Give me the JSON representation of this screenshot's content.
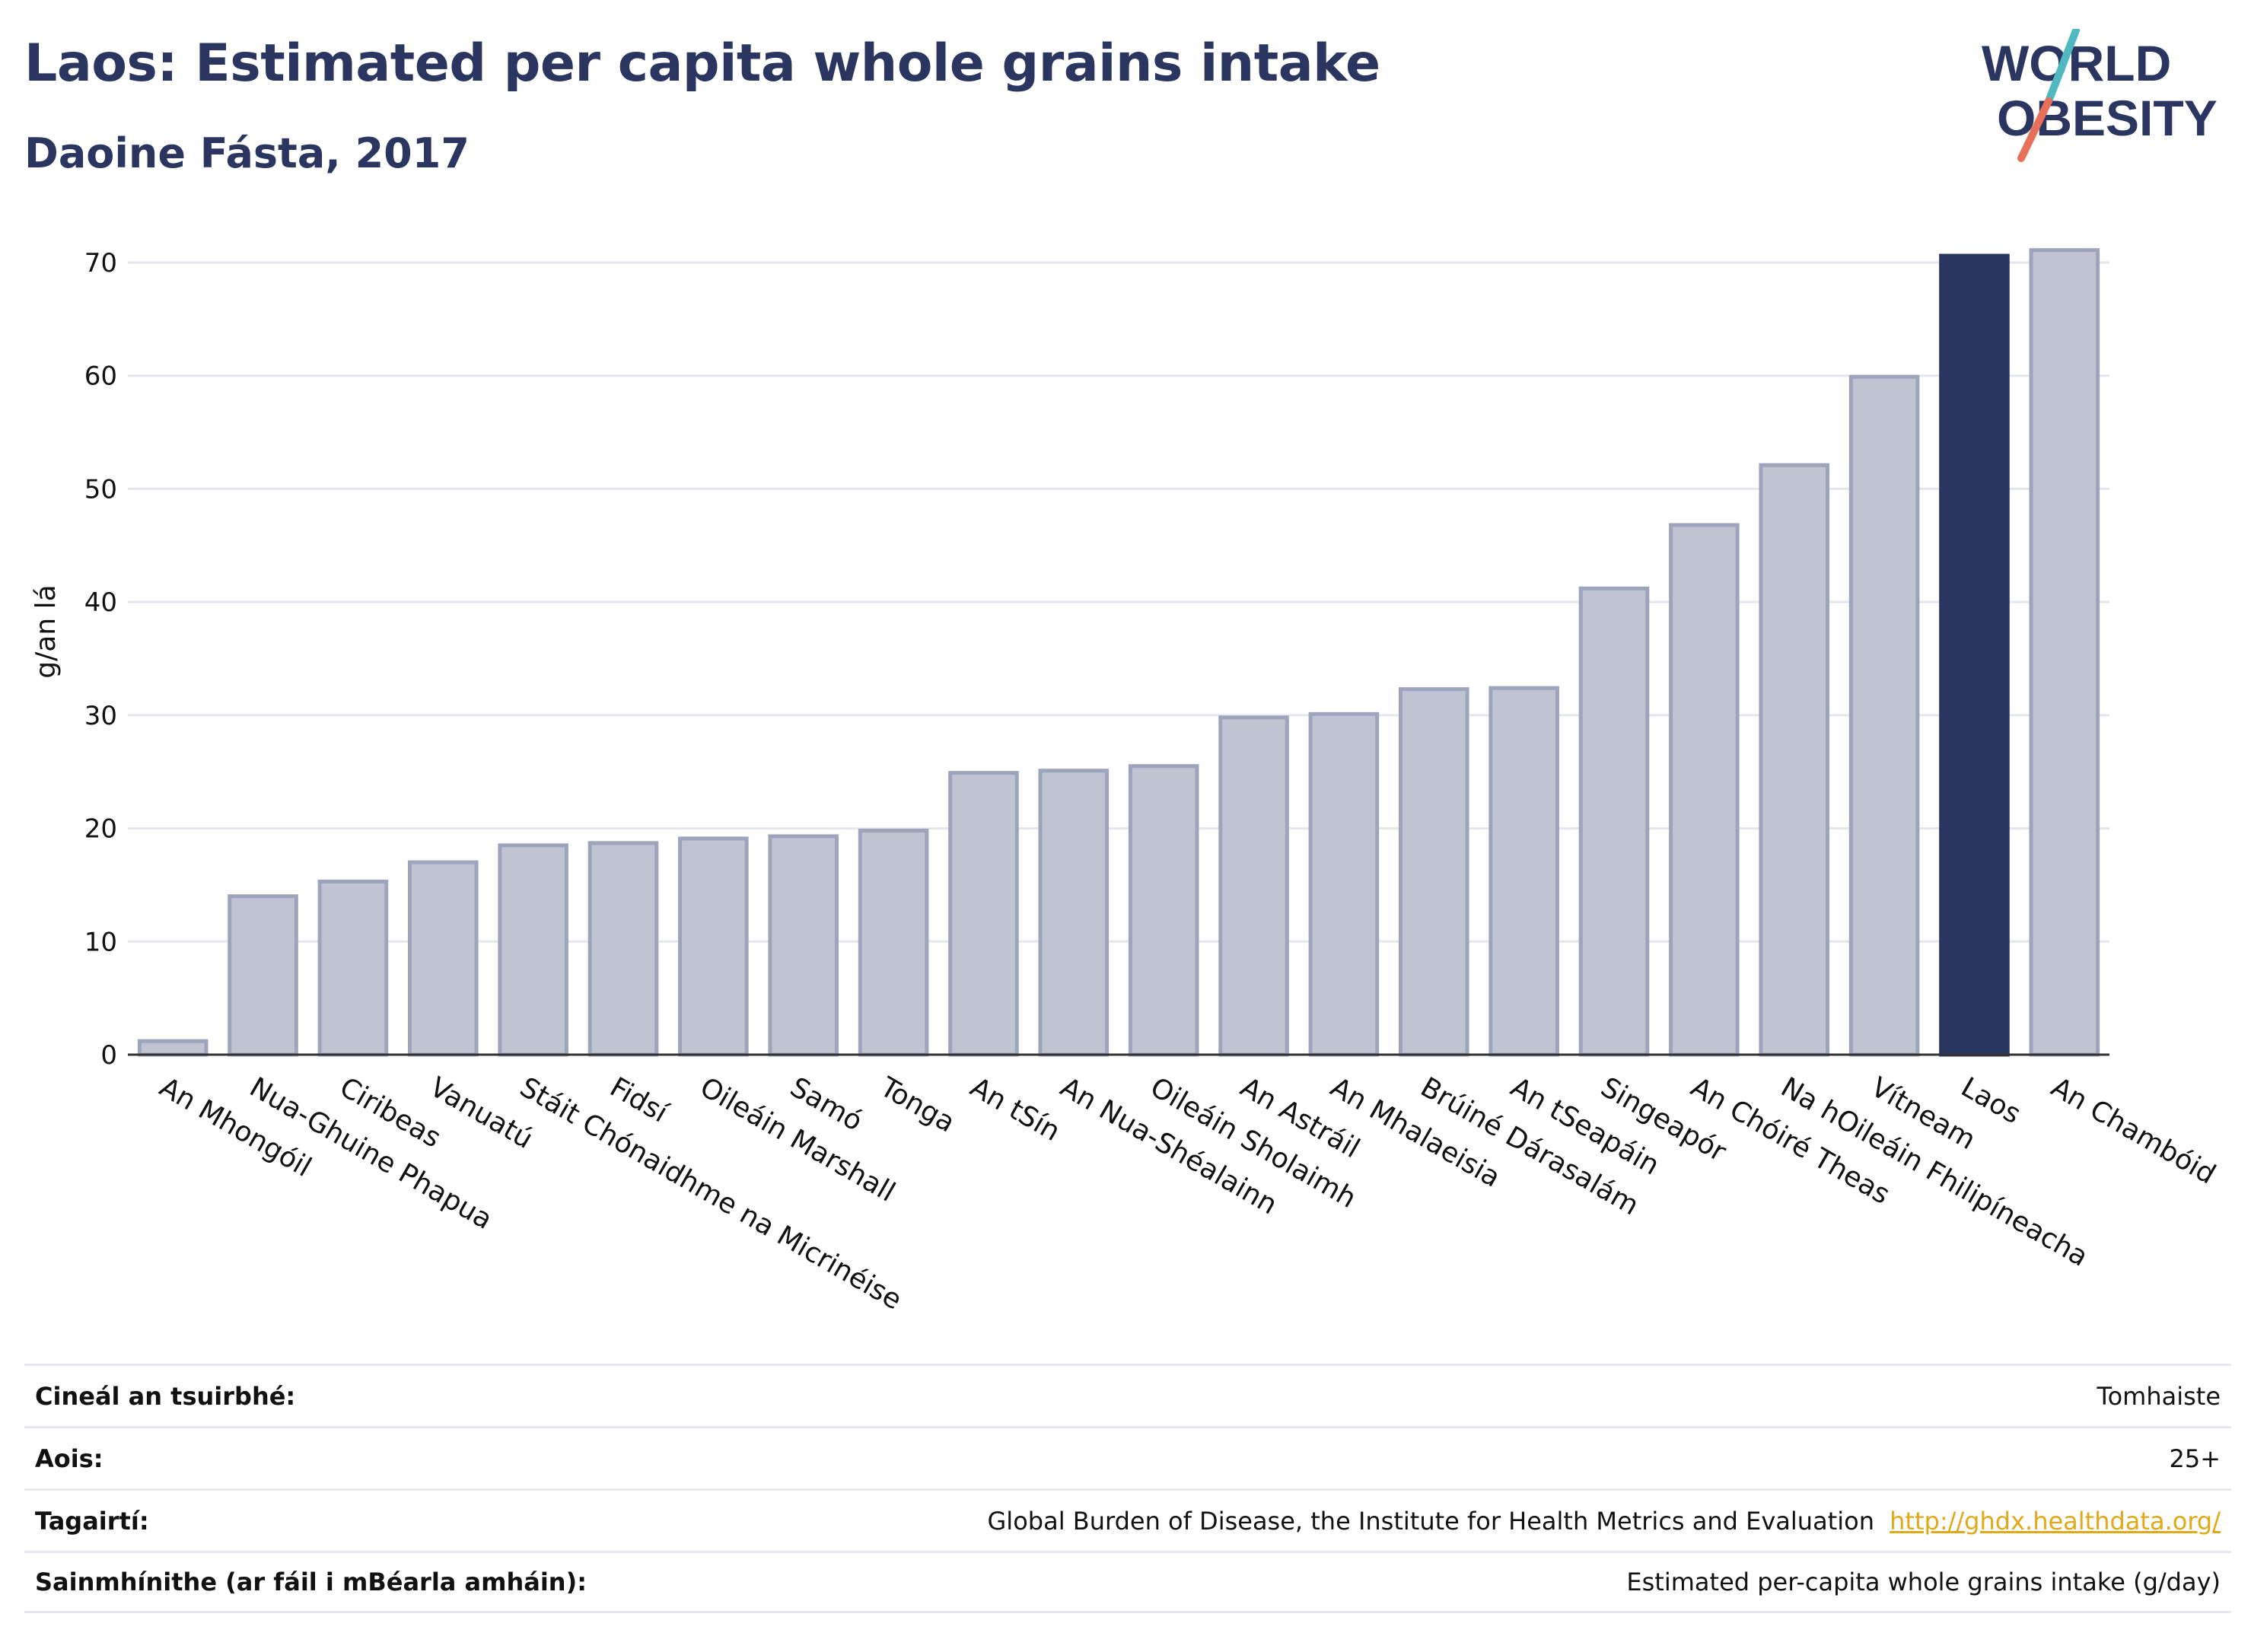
{
  "header": {
    "title": "Laos: Estimated per capita whole grains intake",
    "subtitle": "Daoine Fásta, 2017"
  },
  "logo": {
    "text": "WORLD OBESITY",
    "line1": "WORLD",
    "line2": "OBESITY"
  },
  "colors": {
    "highlight_bar": "#2a3560",
    "other_bar_fill": "#c0c4d2",
    "other_bar_stroke": "#9ea4bc",
    "title": "#2a3560",
    "logo_slash_teal": "#4fb8c0",
    "logo_slash_coral": "#e8705a",
    "link": "#e0a91a"
  },
  "chart_data": {
    "type": "bar",
    "ylabel": "g/an lá",
    "ylim": [
      0,
      70
    ],
    "yticks": [
      0,
      10,
      20,
      30,
      40,
      50,
      60,
      70
    ],
    "grid": true,
    "highlight": "Laos",
    "categories": [
      "An Mhongóil",
      "Nua-Ghuine Phapua",
      "Ciribeas",
      "Vanuatú",
      "Stáit Chónaidhme na Micrinéise",
      "Fidsí",
      "Oileáin Marshall",
      "Samó",
      "Tonga",
      "An tSín",
      "An Nua-Shéalainn",
      "Oileáin Sholaimh",
      "An Astráil",
      "An Mhalaeisia",
      "Brúiné Dárasalám",
      "An tSeapáin",
      "Singeapór",
      "An Chóiré Theas",
      "Na hOileáin Fhilipíneacha",
      "Vítneam",
      "Laos",
      "An Chambóid"
    ],
    "values": [
      1.2,
      14,
      15.3,
      17,
      18.5,
      18.7,
      19.1,
      19.3,
      19.8,
      24.9,
      25.1,
      25.5,
      29.8,
      30.1,
      32.3,
      32.4,
      41.2,
      46.8,
      52.1,
      59.9,
      70.6,
      71.1
    ]
  },
  "meta": {
    "rows": [
      {
        "label": "Cineál an tsuirbhé:",
        "value": "Tomhaiste"
      },
      {
        "label": "Aois:",
        "value": "25+"
      },
      {
        "label": "Tagairtí:",
        "value": "Global Burden of Disease, the Institute for Health Metrics and Evaluation",
        "link": "http://ghdx.healthdata.org/"
      },
      {
        "label": "Sainmhínithe (ar fáil i mBéarla amháin):",
        "value": "Estimated per-capita whole grains intake (g/day)"
      }
    ]
  }
}
